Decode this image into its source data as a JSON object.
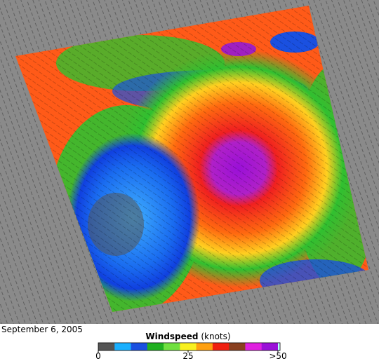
{
  "date": "September 6, 2005",
  "legend": {
    "title": "Windspeed",
    "unit": "(knots)",
    "range": [
      0,
      50
    ],
    "ticks": [
      0,
      25,
      {
        "value": 50,
        "label": ">50"
      }
    ]
  }
}
